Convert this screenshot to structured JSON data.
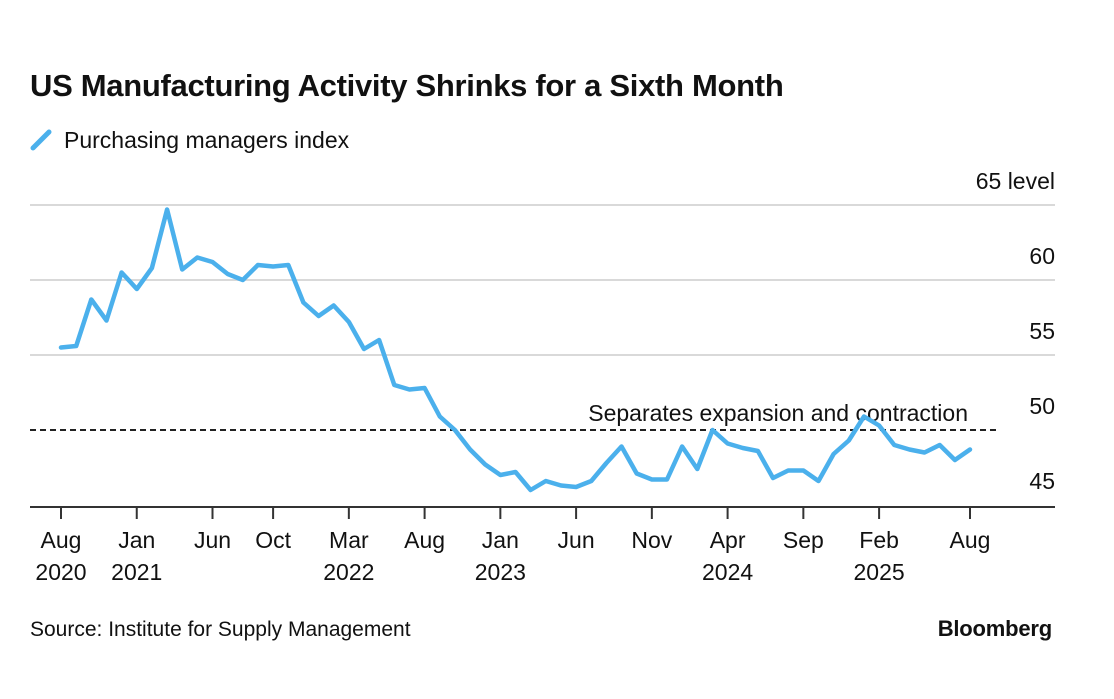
{
  "title": "US Manufacturing Activity Shrinks for a Sixth Month",
  "legend": {
    "label": "Purchasing managers index",
    "icon": "line-swatch-icon"
  },
  "source": "Source: Institute for Supply Management",
  "brand": "Bloomberg",
  "colors": {
    "series": "#4BB0EC",
    "grid": "#d9d9d9",
    "axis": "#333333",
    "reference": "#222222"
  },
  "chart_data": {
    "type": "line",
    "title": "US Manufacturing Activity Shrinks for a Sixth Month",
    "xlabel": "",
    "ylabel": "",
    "y_axis_unit": "level",
    "ylim": [
      44,
      65
    ],
    "yticks": [
      {
        "value": 65,
        "label": "65 level"
      },
      {
        "value": 60,
        "label": "60"
      },
      {
        "value": 55,
        "label": "55"
      },
      {
        "value": 50,
        "label": "50"
      },
      {
        "value": 45,
        "label": "45"
      }
    ],
    "xticks": [
      {
        "date": "2020-08",
        "month": "Aug",
        "year": "2020"
      },
      {
        "date": "2021-01",
        "month": "Jan",
        "year": "2021"
      },
      {
        "date": "2021-06",
        "month": "Jun",
        "year": ""
      },
      {
        "date": "2021-10",
        "month": "Oct",
        "year": ""
      },
      {
        "date": "2022-03",
        "month": "Mar",
        "year": "2022"
      },
      {
        "date": "2022-08",
        "month": "Aug",
        "year": ""
      },
      {
        "date": "2023-01",
        "month": "Jan",
        "year": "2023"
      },
      {
        "date": "2023-06",
        "month": "Jun",
        "year": ""
      },
      {
        "date": "2023-11",
        "month": "Nov",
        "year": ""
      },
      {
        "date": "2024-04",
        "month": "Apr",
        "year": "2024"
      },
      {
        "date": "2024-09",
        "month": "Sep",
        "year": ""
      },
      {
        "date": "2025-02",
        "month": "Feb",
        "year": "2025"
      },
      {
        "date": "2025-08",
        "month": "Aug",
        "year": ""
      }
    ],
    "reference_line": {
      "value": 50,
      "label": "Separates expansion and contraction",
      "style": "dashed"
    },
    "grid": true,
    "legend_position": "top-left",
    "series": [
      {
        "name": "Purchasing managers index",
        "x": [
          "2020-08",
          "2020-09",
          "2020-10",
          "2020-11",
          "2020-12",
          "2021-01",
          "2021-02",
          "2021-03",
          "2021-04",
          "2021-05",
          "2021-06",
          "2021-07",
          "2021-08",
          "2021-09",
          "2021-10",
          "2021-11",
          "2021-12",
          "2022-01",
          "2022-02",
          "2022-03",
          "2022-04",
          "2022-05",
          "2022-06",
          "2022-07",
          "2022-08",
          "2022-09",
          "2022-10",
          "2022-11",
          "2022-12",
          "2023-01",
          "2023-02",
          "2023-03",
          "2023-04",
          "2023-05",
          "2023-06",
          "2023-07",
          "2023-08",
          "2023-09",
          "2023-10",
          "2023-11",
          "2023-12",
          "2024-01",
          "2024-02",
          "2024-03",
          "2024-04",
          "2024-05",
          "2024-06",
          "2024-07",
          "2024-08",
          "2024-09",
          "2024-10",
          "2024-11",
          "2024-12",
          "2025-01",
          "2025-02",
          "2025-03",
          "2025-04",
          "2025-05",
          "2025-06",
          "2025-07",
          "2025-08"
        ],
        "values": [
          55.5,
          55.6,
          58.7,
          57.3,
          60.5,
          59.4,
          60.8,
          64.7,
          60.7,
          61.5,
          61.2,
          60.4,
          60.0,
          61.0,
          60.9,
          61.0,
          58.5,
          57.6,
          58.3,
          57.2,
          55.4,
          56.0,
          53.0,
          52.7,
          52.8,
          50.9,
          50.0,
          48.7,
          47.7,
          47.0,
          47.2,
          46.0,
          46.6,
          46.3,
          46.2,
          46.6,
          47.8,
          48.9,
          47.1,
          46.7,
          46.7,
          48.9,
          47.4,
          50.0,
          49.1,
          48.8,
          48.6,
          46.8,
          47.3,
          47.3,
          46.6,
          48.4,
          49.3,
          50.9,
          50.3,
          49.0,
          48.7,
          48.5,
          49.0,
          48.0,
          48.7
        ]
      }
    ]
  }
}
